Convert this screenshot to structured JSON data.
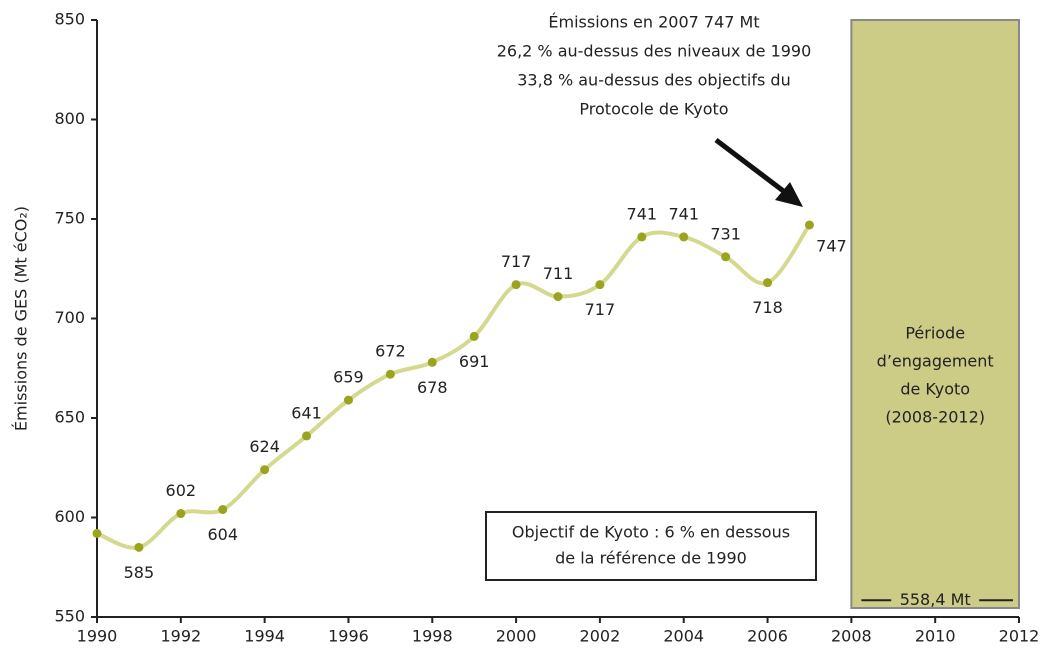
{
  "chart_data": {
    "type": "line",
    "y_label": "Émissions de GES (Mt éCO₂)",
    "x": [
      1990,
      1991,
      1992,
      1993,
      1994,
      1995,
      1996,
      1997,
      1998,
      1999,
      2000,
      2001,
      2002,
      2003,
      2004,
      2005,
      2006,
      2007
    ],
    "values": [
      592,
      585,
      602,
      604,
      624,
      641,
      659,
      672,
      678,
      691,
      717,
      711,
      717,
      741,
      741,
      731,
      718,
      747
    ],
    "value_labels": [
      null,
      "585",
      "602",
      "604",
      "624",
      "641",
      "659",
      "672",
      "678",
      "691",
      "717",
      "711",
      "717",
      "741",
      "741",
      "731",
      "718",
      "747"
    ],
    "line_color": "#d5d98f",
    "marker_color": "#9ba41e",
    "xlim": [
      1990,
      2012
    ],
    "xticks": [
      1990,
      1992,
      1994,
      1996,
      1998,
      2000,
      2002,
      2004,
      2006,
      2008,
      2010,
      2012
    ],
    "ylim": [
      550,
      850
    ],
    "yticks": [
      550,
      600,
      650,
      700,
      750,
      800,
      850
    ],
    "annotation": [
      "Émissions en 2007 747 Mt",
      "26,2 % au-dessus des niveaux de 1990",
      "33,8 % au-dessus des objectifs du",
      "Protocole de Kyoto"
    ],
    "target_note": [
      "Objectif de Kyoto : 6 % en dessous",
      "de la référence de 1990"
    ],
    "period": {
      "x": [
        2008,
        2012
      ],
      "color": "#cdcc87",
      "lines": [
        "Période",
        "d’engagement",
        "de Kyoto",
        "(2008-2012)"
      ]
    },
    "target": {
      "value": 558.4,
      "label": "558,4 Mt"
    }
  }
}
